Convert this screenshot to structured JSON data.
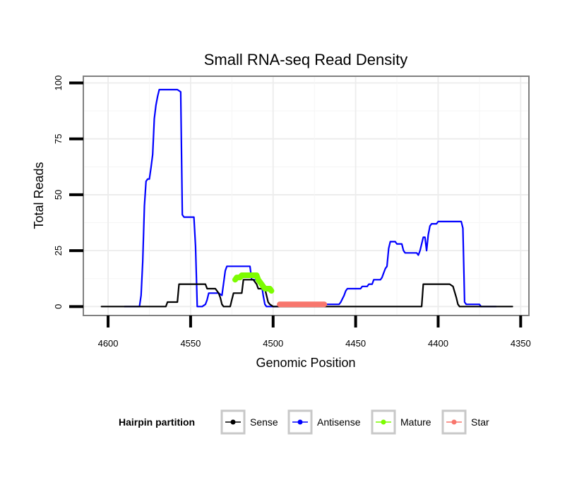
{
  "chart_data": {
    "type": "line",
    "title": "Small RNA-seq Read Density",
    "xlabel": "Genomic Position",
    "ylabel": "Total Reads",
    "xlim": [
      4615,
      4345
    ],
    "ylim": [
      -4,
      103
    ],
    "x_reversed": true,
    "xticks": [
      4600,
      4550,
      4500,
      4450,
      4400,
      4350
    ],
    "yticks": [
      0,
      25,
      50,
      75,
      100
    ],
    "grid": true,
    "legend": {
      "title": "Hairpin partition",
      "position": "bottom",
      "entries": [
        {
          "name": "Sense",
          "color": "#000000"
        },
        {
          "name": "Antisense",
          "color": "#0000ff"
        },
        {
          "name": "Mature",
          "color": "#7cfc00"
        },
        {
          "name": "Star",
          "color": "#f8766d"
        }
      ]
    },
    "series": [
      {
        "name": "Antisense",
        "color": "#0000ff",
        "style": "line",
        "points": [
          [
            4590,
            0
          ],
          [
            4581,
            0
          ],
          [
            4580,
            5
          ],
          [
            4579,
            20
          ],
          [
            4578,
            45
          ],
          [
            4577,
            56
          ],
          [
            4576,
            57
          ],
          [
            4575,
            57
          ],
          [
            4574,
            62
          ],
          [
            4573,
            68
          ],
          [
            4572,
            84
          ],
          [
            4571,
            90
          ],
          [
            4570,
            94
          ],
          [
            4569,
            97
          ],
          [
            4568,
            97
          ],
          [
            4567,
            97
          ],
          [
            4564,
            97
          ],
          [
            4558,
            97
          ],
          [
            4556,
            96
          ],
          [
            4555,
            41
          ],
          [
            4554,
            40
          ],
          [
            4548,
            40
          ],
          [
            4547,
            27
          ],
          [
            4546,
            0
          ],
          [
            4543,
            0
          ],
          [
            4541,
            1
          ],
          [
            4540,
            3
          ],
          [
            4539,
            6
          ],
          [
            4533,
            6
          ],
          [
            4531,
            5
          ],
          [
            4529,
            16
          ],
          [
            4528,
            18
          ],
          [
            4527,
            18
          ],
          [
            4514,
            18
          ],
          [
            4513,
            12
          ],
          [
            4508,
            12
          ],
          [
            4507,
            10
          ],
          [
            4506,
            5
          ],
          [
            4505,
            1
          ],
          [
            4504,
            0
          ],
          [
            4497,
            0
          ],
          [
            4496,
            1
          ],
          [
            4460,
            1
          ],
          [
            4459,
            2
          ],
          [
            4457,
            5
          ],
          [
            4456,
            7
          ],
          [
            4455,
            8
          ],
          [
            4447,
            8
          ],
          [
            4446,
            9
          ],
          [
            4443,
            9
          ],
          [
            4442,
            10
          ],
          [
            4440,
            10
          ],
          [
            4439,
            12
          ],
          [
            4435,
            12
          ],
          [
            4434,
            13
          ],
          [
            4433,
            15
          ],
          [
            4432,
            17
          ],
          [
            4431,
            18
          ],
          [
            4430,
            26
          ],
          [
            4429,
            29
          ],
          [
            4426,
            29
          ],
          [
            4425,
            28
          ],
          [
            4422,
            28
          ],
          [
            4421,
            25
          ],
          [
            4420,
            24
          ],
          [
            4413,
            24
          ],
          [
            4412,
            23
          ],
          [
            4411,
            25
          ],
          [
            4410,
            28
          ],
          [
            4409,
            31
          ],
          [
            4408,
            31
          ],
          [
            4407,
            25
          ],
          [
            4406,
            32
          ],
          [
            4405,
            36
          ],
          [
            4404,
            37
          ],
          [
            4401,
            37
          ],
          [
            4400,
            38
          ],
          [
            4386,
            38
          ],
          [
            4385,
            35
          ],
          [
            4384,
            2
          ],
          [
            4383,
            1
          ],
          [
            4375,
            1
          ],
          [
            4374,
            0
          ],
          [
            4365,
            0
          ]
        ]
      },
      {
        "name": "Sense",
        "color": "#000000",
        "style": "line",
        "points": [
          [
            4604,
            0
          ],
          [
            4565,
            0
          ],
          [
            4564,
            2
          ],
          [
            4558,
            2
          ],
          [
            4557,
            10
          ],
          [
            4547,
            10
          ],
          [
            4541,
            10
          ],
          [
            4540,
            8
          ],
          [
            4535,
            8
          ],
          [
            4533,
            6
          ],
          [
            4532,
            4
          ],
          [
            4531,
            1
          ],
          [
            4530,
            0
          ],
          [
            4526,
            0
          ],
          [
            4525,
            3
          ],
          [
            4524,
            6
          ],
          [
            4519,
            6
          ],
          [
            4518,
            12
          ],
          [
            4512,
            12
          ],
          [
            4510,
            10
          ],
          [
            4509,
            8
          ],
          [
            4505,
            8
          ],
          [
            4504,
            5
          ],
          [
            4503,
            2
          ],
          [
            4502,
            1
          ],
          [
            4500,
            0
          ],
          [
            4410,
            0
          ],
          [
            4409,
            10
          ],
          [
            4393,
            10
          ],
          [
            4391,
            9
          ],
          [
            4389,
            4
          ],
          [
            4388,
            1
          ],
          [
            4387,
            0
          ],
          [
            4355,
            0
          ]
        ]
      },
      {
        "name": "Mature",
        "color": "#7cfc00",
        "style": "thick",
        "points": [
          [
            4523,
            12
          ],
          [
            4522,
            13
          ],
          [
            4520,
            13
          ],
          [
            4519,
            14
          ],
          [
            4510,
            14
          ],
          [
            4509,
            12
          ],
          [
            4508,
            11
          ],
          [
            4507,
            10
          ],
          [
            4506,
            9
          ],
          [
            4505,
            8
          ],
          [
            4502,
            8
          ],
          [
            4501,
            7
          ]
        ]
      },
      {
        "name": "Star",
        "color": "#f8766d",
        "style": "thick",
        "points": [
          [
            4496,
            1
          ],
          [
            4469,
            1
          ]
        ]
      }
    ]
  }
}
